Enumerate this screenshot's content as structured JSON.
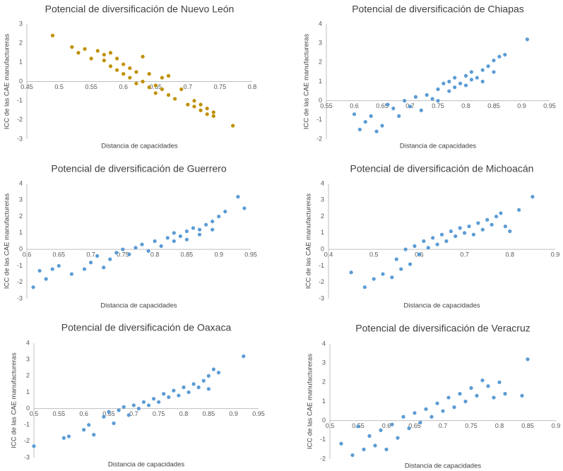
{
  "chart_data": [
    {
      "type": "scatter",
      "title": "Potencial de diversificación de Nuevo León",
      "x_label": "Distancia de capacidades",
      "y_label": "ICC de las CAE manufactureras",
      "color": "#bf9000",
      "xlim": [
        0.45,
        0.8
      ],
      "ylim": [
        -3,
        3
      ],
      "xticks": [
        0.45,
        0.5,
        0.55,
        0.6,
        0.65,
        0.7,
        0.75,
        0.8
      ],
      "yticks": [
        -3,
        -2,
        -1,
        0,
        1,
        2,
        3
      ],
      "x": [
        0.49,
        0.52,
        0.53,
        0.54,
        0.55,
        0.56,
        0.57,
        0.57,
        0.58,
        0.58,
        0.59,
        0.59,
        0.6,
        0.6,
        0.61,
        0.61,
        0.62,
        0.62,
        0.63,
        0.63,
        0.64,
        0.64,
        0.65,
        0.65,
        0.66,
        0.66,
        0.67,
        0.67,
        0.68,
        0.69,
        0.7,
        0.71,
        0.71,
        0.72,
        0.72,
        0.73,
        0.73,
        0.74,
        0.74,
        0.77
      ],
      "y": [
        2.4,
        1.8,
        1.5,
        1.7,
        1.2,
        1.6,
        1.4,
        1.1,
        0.8,
        1.5,
        0.6,
        1.2,
        0.4,
        0.9,
        0.2,
        0.7,
        0.5,
        -0.1,
        1.3,
        0.0,
        -0.3,
        0.4,
        -0.2,
        -0.6,
        -0.4,
        0.2,
        -0.7,
        0.3,
        -0.9,
        -0.4,
        -1.2,
        -1.0,
        -1.3,
        -1.5,
        -1.2,
        -1.7,
        -1.4,
        -1.8,
        -1.6,
        -2.3
      ]
    },
    {
      "type": "scatter",
      "title": "Potencial de diversificación de Chiapas",
      "x_label": "Distancia de capacidades",
      "y_label": "ICC de las CAE manufactureras",
      "color": "#5b9bd5",
      "xlim": [
        0.55,
        0.95
      ],
      "ylim": [
        -2,
        4
      ],
      "xticks": [
        0.55,
        0.6,
        0.65,
        0.7,
        0.75,
        0.8,
        0.85,
        0.9,
        0.95
      ],
      "yticks": [
        -2,
        -1,
        0,
        1,
        2,
        3,
        4
      ],
      "x": [
        0.6,
        0.61,
        0.62,
        0.63,
        0.64,
        0.65,
        0.66,
        0.67,
        0.68,
        0.69,
        0.7,
        0.71,
        0.72,
        0.73,
        0.74,
        0.75,
        0.75,
        0.76,
        0.77,
        0.77,
        0.78,
        0.78,
        0.79,
        0.8,
        0.8,
        0.81,
        0.81,
        0.82,
        0.83,
        0.83,
        0.84,
        0.85,
        0.85,
        0.86,
        0.87,
        0.91
      ],
      "y": [
        -0.7,
        -1.5,
        -1.1,
        -0.8,
        -1.6,
        -1.3,
        -0.2,
        -0.4,
        -0.8,
        0.0,
        -0.3,
        0.2,
        -0.5,
        0.3,
        0.1,
        0.6,
        0.0,
        0.9,
        0.5,
        1.0,
        0.7,
        1.2,
        0.9,
        1.3,
        0.8,
        1.5,
        1.1,
        1.2,
        1.6,
        1.0,
        1.8,
        1.5,
        2.1,
        2.3,
        2.4,
        3.2
      ]
    },
    {
      "type": "scatter",
      "title": "Potencial de diversificación de Guerrero",
      "x_label": "Distancia de capacidades",
      "y_label": "ICC de las CAE manufactureras",
      "color": "#5b9bd5",
      "xlim": [
        0.6,
        0.95
      ],
      "ylim": [
        -3,
        4
      ],
      "xticks": [
        0.6,
        0.65,
        0.7,
        0.75,
        0.8,
        0.85,
        0.9,
        0.95
      ],
      "yticks": [
        -3,
        -2,
        -1,
        0,
        1,
        2,
        3,
        4
      ],
      "x": [
        0.61,
        0.62,
        0.63,
        0.64,
        0.65,
        0.67,
        0.69,
        0.7,
        0.71,
        0.72,
        0.73,
        0.74,
        0.75,
        0.76,
        0.77,
        0.78,
        0.79,
        0.8,
        0.81,
        0.82,
        0.83,
        0.83,
        0.84,
        0.85,
        0.85,
        0.86,
        0.87,
        0.87,
        0.88,
        0.89,
        0.89,
        0.9,
        0.91,
        0.93,
        0.94
      ],
      "y": [
        -2.3,
        -1.3,
        -1.8,
        -1.2,
        -1.0,
        -1.5,
        -1.2,
        -0.8,
        -0.4,
        -1.1,
        -0.6,
        -0.2,
        0.0,
        -0.3,
        0.1,
        0.3,
        -0.1,
        0.5,
        0.2,
        0.7,
        0.5,
        1.0,
        0.8,
        1.1,
        0.6,
        1.3,
        1.2,
        0.9,
        1.5,
        1.7,
        1.2,
        2.0,
        2.3,
        3.2,
        2.5
      ]
    },
    {
      "type": "scatter",
      "title": "Potencial de diversificación de Michoacán",
      "x_label": "Distancia de capacidades",
      "y_label": "ICC de las CAE manufactureras",
      "color": "#5b9bd5",
      "xlim": [
        0.4,
        0.9
      ],
      "ylim": [
        -3,
        4
      ],
      "xticks": [
        0.4,
        0.5,
        0.6,
        0.7,
        0.8,
        0.9
      ],
      "yticks": [
        -3,
        -2,
        -1,
        0,
        1,
        2,
        3,
        4
      ],
      "x": [
        0.45,
        0.48,
        0.5,
        0.52,
        0.54,
        0.55,
        0.56,
        0.57,
        0.58,
        0.59,
        0.6,
        0.61,
        0.62,
        0.63,
        0.64,
        0.65,
        0.66,
        0.67,
        0.68,
        0.69,
        0.7,
        0.71,
        0.72,
        0.73,
        0.74,
        0.75,
        0.76,
        0.77,
        0.78,
        0.79,
        0.8,
        0.82,
        0.85
      ],
      "y": [
        -1.4,
        -2.3,
        -1.8,
        -1.5,
        -1.7,
        -0.6,
        -1.2,
        0.0,
        -0.9,
        0.2,
        -0.3,
        0.5,
        0.1,
        0.7,
        0.3,
        0.9,
        0.5,
        1.1,
        0.8,
        1.3,
        1.0,
        1.4,
        0.9,
        1.6,
        1.2,
        1.8,
        1.5,
        2.0,
        2.2,
        1.4,
        1.1,
        2.4,
        3.2
      ]
    },
    {
      "type": "scatter",
      "title": "Potencial de diversificación de Oaxaca",
      "x_label": "Distancia de capacidades",
      "y_label": "ICC de las CAE manufactureras",
      "color": "#5b9bd5",
      "xlim": [
        0.5,
        0.95
      ],
      "ylim": [
        -3,
        4
      ],
      "xticks": [
        0.5,
        0.55,
        0.6,
        0.65,
        0.7,
        0.75,
        0.8,
        0.85,
        0.9,
        0.95
      ],
      "yticks": [
        -3,
        -2,
        -1,
        0,
        1,
        2,
        3,
        4
      ],
      "x": [
        0.5,
        0.56,
        0.57,
        0.6,
        0.61,
        0.62,
        0.64,
        0.65,
        0.66,
        0.67,
        0.68,
        0.69,
        0.7,
        0.71,
        0.72,
        0.73,
        0.74,
        0.75,
        0.76,
        0.77,
        0.78,
        0.79,
        0.8,
        0.81,
        0.82,
        0.83,
        0.84,
        0.85,
        0.85,
        0.86,
        0.87,
        0.92
      ],
      "y": [
        -2.3,
        -1.8,
        -1.7,
        -1.3,
        -1.0,
        -1.6,
        -0.5,
        -0.2,
        -0.9,
        -0.1,
        0.1,
        -0.4,
        0.2,
        0.0,
        0.4,
        0.2,
        0.6,
        0.4,
        0.9,
        0.7,
        1.1,
        0.8,
        1.3,
        1.0,
        1.5,
        1.3,
        1.7,
        2.0,
        1.2,
        2.4,
        2.2,
        3.2
      ]
    },
    {
      "type": "scatter",
      "title": "Potencial de diversificación de Veracruz",
      "x_label": "Distancia de capacidades",
      "y_label": "ICC de las CAE manufactureras",
      "color": "#5b9bd5",
      "xlim": [
        0.5,
        0.9
      ],
      "ylim": [
        -2,
        4
      ],
      "xticks": [
        0.5,
        0.55,
        0.6,
        0.65,
        0.7,
        0.75,
        0.8,
        0.85,
        0.9
      ],
      "yticks": [
        -2,
        -1,
        0,
        1,
        2,
        3,
        4
      ],
      "x": [
        0.52,
        0.54,
        0.55,
        0.56,
        0.57,
        0.58,
        0.59,
        0.6,
        0.61,
        0.62,
        0.63,
        0.64,
        0.65,
        0.66,
        0.67,
        0.68,
        0.69,
        0.7,
        0.71,
        0.72,
        0.73,
        0.74,
        0.75,
        0.76,
        0.77,
        0.78,
        0.79,
        0.8,
        0.81,
        0.84,
        0.85
      ],
      "y": [
        -1.2,
        -1.8,
        -0.3,
        -1.5,
        -0.8,
        -1.3,
        -0.5,
        -1.5,
        -0.2,
        -0.9,
        0.2,
        -0.4,
        0.4,
        -0.1,
        0.6,
        0.2,
        0.9,
        0.5,
        1.2,
        0.7,
        1.4,
        1.0,
        1.7,
        1.3,
        2.1,
        1.8,
        1.2,
        2.0,
        1.4,
        1.3,
        3.2
      ]
    }
  ]
}
